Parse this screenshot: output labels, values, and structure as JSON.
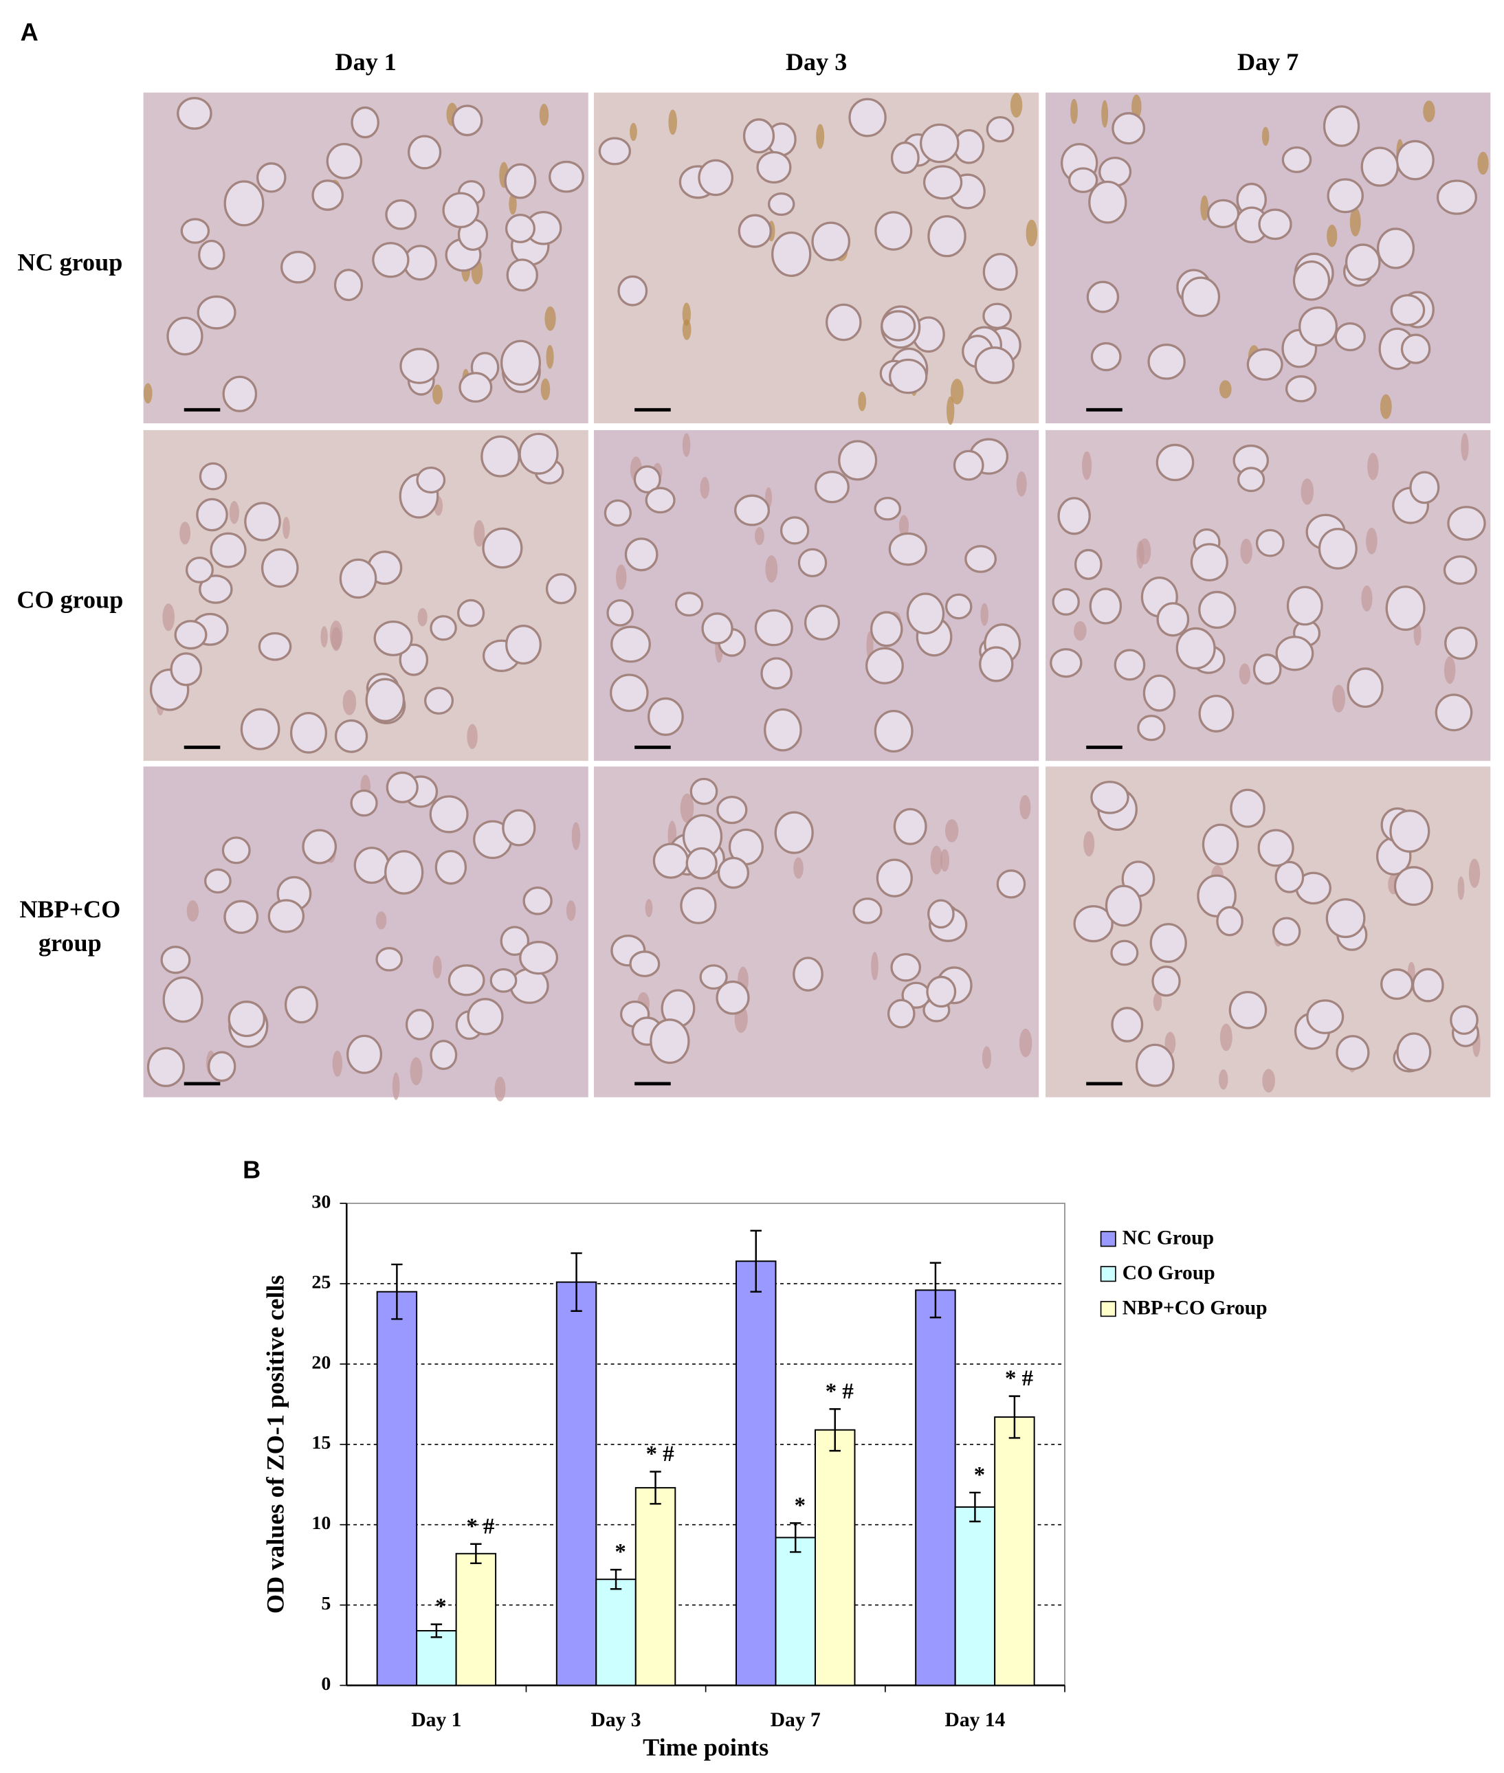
{
  "panel_a": {
    "label": "A",
    "columns": [
      "Day 1",
      "Day 3",
      "Day 7"
    ],
    "rows": [
      "NC group",
      "CO group",
      [
        "NBP+CO",
        "group"
      ]
    ]
  },
  "chart_data": {
    "type": "bar",
    "label": "B",
    "ylabel": "OD values of ZO-1 positive cells",
    "xlabel": "Time points",
    "categories": [
      "Day 1",
      "Day 3",
      "Day 7",
      "Day 14"
    ],
    "series": [
      {
        "name": "NC Group",
        "color": "#9999ff",
        "values": [
          24.5,
          25.1,
          26.4,
          24.6
        ],
        "errors": [
          1.7,
          1.8,
          1.9,
          1.7
        ]
      },
      {
        "name": "CO Group",
        "color": "#ccffff",
        "values": [
          3.4,
          6.6,
          9.2,
          11.1
        ],
        "errors": [
          0.4,
          0.6,
          0.9,
          0.9
        ],
        "annotations": [
          "*",
          "*",
          "*",
          "*"
        ]
      },
      {
        "name": "NBP+CO Group",
        "color": "#ffffcc",
        "values": [
          8.2,
          12.3,
          15.9,
          16.7
        ],
        "errors": [
          0.6,
          1.0,
          1.3,
          1.3
        ],
        "annotations": [
          "* #",
          "* #",
          "* #",
          "* #"
        ]
      }
    ],
    "ylim": [
      0,
      30
    ],
    "yticks": [
      0,
      5,
      10,
      15,
      20,
      25,
      30
    ],
    "grid": true,
    "legend": "right"
  }
}
